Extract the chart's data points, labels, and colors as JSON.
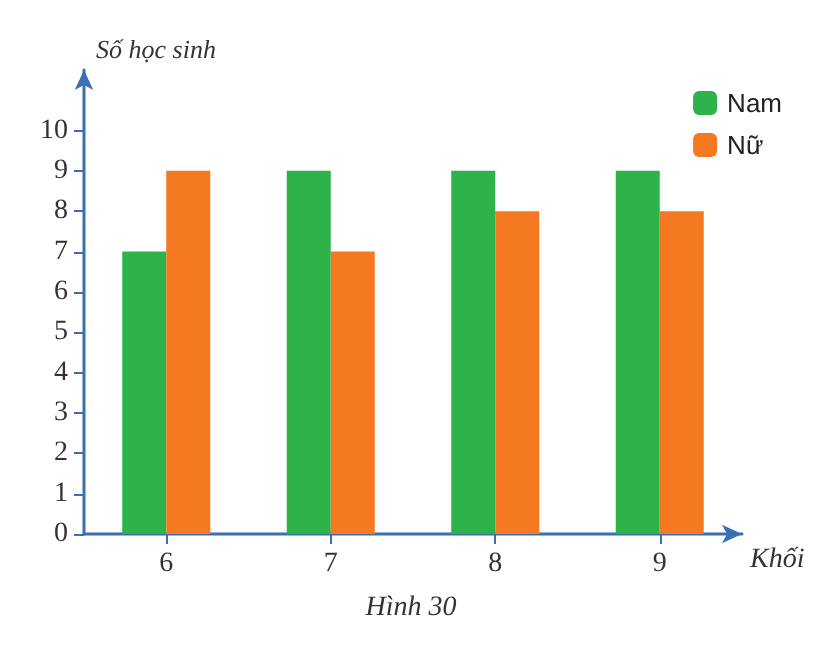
{
  "chart_data": {
    "type": "bar",
    "xlabel": "Khối",
    "ylabel": "Số học sinh",
    "annotations": [
      "Hình 30"
    ],
    "categories": [
      "6",
      "7",
      "8",
      "9"
    ],
    "series": [
      {
        "name": "Nam",
        "color": "#2db34a",
        "values": [
          7,
          9,
          9,
          9
        ]
      },
      {
        "name": "Nữ",
        "color": "#f47920",
        "values": [
          9,
          7,
          8,
          8
        ]
      }
    ],
    "ylim": [
      0,
      11.5
    ],
    "yticks": [
      0,
      1,
      2,
      3,
      4,
      5,
      6,
      7,
      8,
      9,
      10
    ],
    "grid": false,
    "legend": "top right"
  }
}
